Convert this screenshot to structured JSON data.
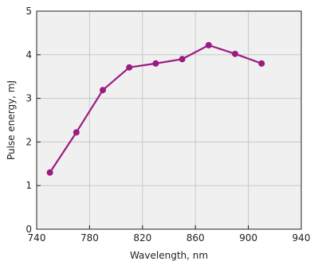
{
  "chart_data": {
    "type": "line",
    "xlabel": "Wavelength, nm",
    "ylabel": "Pulse energy, mJ",
    "xlim": [
      740,
      940
    ],
    "ylim": [
      0,
      5
    ],
    "xticks": [
      740,
      780,
      820,
      860,
      900,
      940
    ],
    "yticks": [
      0,
      1,
      2,
      3,
      4,
      5
    ],
    "x_tick_labels": [
      "740",
      "780",
      "820",
      "860",
      "900",
      "940"
    ],
    "y_tick_labels": [
      "0",
      "1",
      "2",
      "3",
      "4",
      "5"
    ],
    "grid": true,
    "series": [
      {
        "x": [
          750,
          770,
          790,
          810,
          830,
          850,
          870,
          890,
          910
        ],
        "y": [
          1.3,
          2.22,
          3.19,
          3.71,
          3.8,
          3.9,
          4.22,
          4.02,
          3.8
        ],
        "markers": true
      }
    ],
    "colors": {
      "line": "#9b1b82",
      "plot_background": "#f0f0f0",
      "grid": "#c8c8c8",
      "axis": "#222222"
    }
  }
}
